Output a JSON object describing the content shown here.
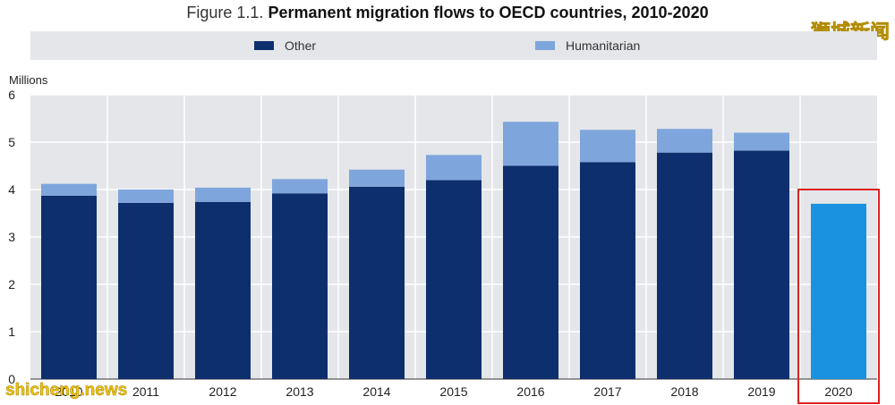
{
  "title_prefix": "Figure 1.1.",
  "title_main": "Permanent migration flows to OECD countries, 2010-2020",
  "watermark_top": "狮城新闻",
  "watermark_bottom": "shicheng.news",
  "colors": {
    "other": "#0e2f6e",
    "humanitarian": "#7fa6dc",
    "highlight_2020": "#1b92e0",
    "highlight_box": "#e02020",
    "plot_bg": "#e4e6e9"
  },
  "legend": [
    {
      "label": "Other",
      "color": "#0e2f6e"
    },
    {
      "label": "Humanitarian",
      "color": "#7fa6dc"
    }
  ],
  "chart_data": {
    "type": "bar",
    "stacked": true,
    "ylabel": "Millions",
    "ylim": [
      0,
      6
    ],
    "yticks": [
      0,
      1,
      2,
      3,
      4,
      5,
      6
    ],
    "categories": [
      "2010",
      "2011",
      "2012",
      "2013",
      "2014",
      "2015",
      "2016",
      "2017",
      "2018",
      "2019",
      "2020"
    ],
    "series": [
      {
        "name": "Other",
        "values": [
          3.87,
          3.72,
          3.74,
          3.92,
          4.06,
          4.2,
          4.5,
          4.58,
          4.78,
          4.82,
          3.7
        ]
      },
      {
        "name": "Humanitarian",
        "values": [
          0.25,
          0.28,
          0.3,
          0.3,
          0.36,
          0.53,
          0.93,
          0.68,
          0.5,
          0.38,
          null
        ]
      }
    ],
    "highlight_category": "2020"
  }
}
